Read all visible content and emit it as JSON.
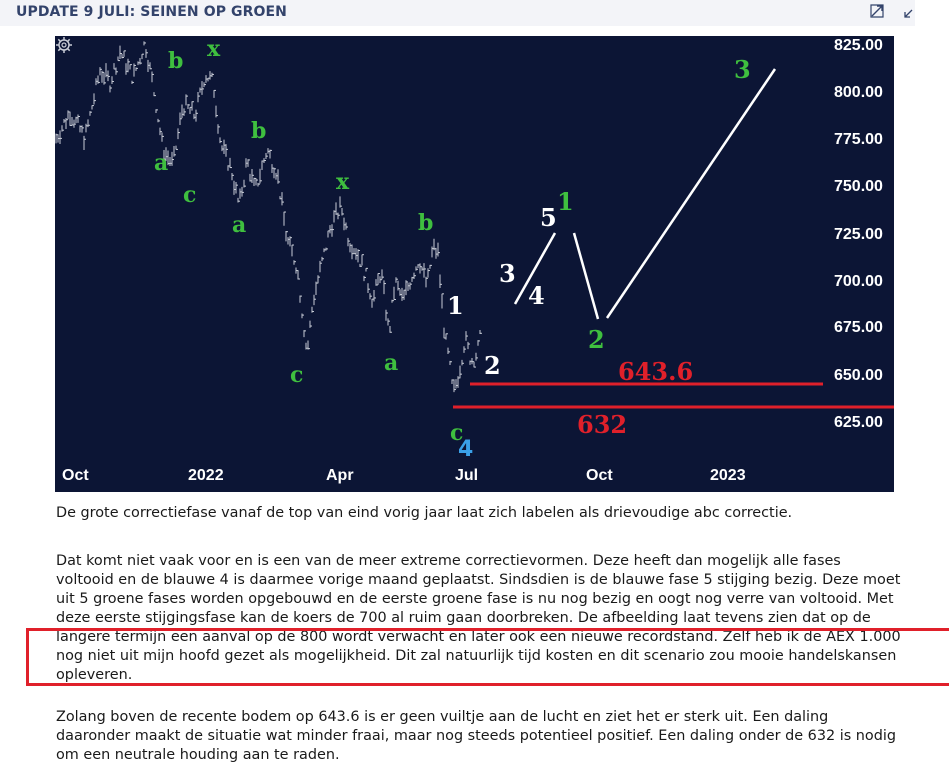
{
  "header": {
    "title": "UPDATE 9 JULI: SEINEN OP GROEN",
    "expand_icon": "expand-arrow-icon",
    "collapse_icon": "collapse-arrow-icon"
  },
  "chart": {
    "y_ticks": [
      "825.00",
      "800.00",
      "775.00",
      "750.00",
      "725.00",
      "700.00",
      "675.00",
      "650.00",
      "625.00"
    ],
    "x_ticks": [
      "Oct",
      "2022",
      "Apr",
      "Jul",
      "Oct",
      "2023"
    ],
    "settings_icon": "gear-icon",
    "colors": {
      "background": "#0c1535",
      "price": "#c8ccd6",
      "green_label": "#3fbf3f",
      "white_label": "#ffffff",
      "blue_label": "#3aa0e8",
      "red_level": "#e0202a"
    },
    "labels": {
      "green": [
        {
          "id": "b1",
          "text": "b"
        },
        {
          "id": "x1",
          "text": "x"
        },
        {
          "id": "a1",
          "text": "a"
        },
        {
          "id": "c1",
          "text": "c"
        },
        {
          "id": "b2",
          "text": "b"
        },
        {
          "id": "a2",
          "text": "a"
        },
        {
          "id": "x2",
          "text": "x"
        },
        {
          "id": "b3",
          "text": "b"
        },
        {
          "id": "c2",
          "text": "c"
        },
        {
          "id": "a3",
          "text": "a"
        },
        {
          "id": "c3",
          "text": "c"
        },
        {
          "id": "w1",
          "text": "1"
        },
        {
          "id": "w2",
          "text": "2"
        },
        {
          "id": "w3",
          "text": "3"
        }
      ],
      "white": [
        {
          "id": "s1",
          "text": "1"
        },
        {
          "id": "s2",
          "text": "2"
        },
        {
          "id": "s3",
          "text": "3"
        },
        {
          "id": "s4",
          "text": "4"
        },
        {
          "id": "s5",
          "text": "5"
        }
      ],
      "blue": [
        {
          "id": "b4",
          "text": "4"
        }
      ]
    },
    "levels": [
      {
        "label": "643.6",
        "value": 643.6
      },
      {
        "label": "632",
        "value": 632
      }
    ]
  },
  "article": {
    "p1": "De grote correctiefase vanaf de top van eind vorig jaar laat zich labelen als drievoudige abc correctie.",
    "p2": "Dat komt niet vaak voor en is een van de meer extreme correctievormen. Deze heeft dan mogelijk alle fases voltooid en de blauwe 4 is daarmee vorige maand geplaatst. Sindsdien is de blauwe fase 5 stijging bezig. Deze moet uit 5 groene fases worden opgebouwd en de eerste groene fase is nu nog bezig en oogt nog verre van voltooid. Met deze eerste stijgingsfase kan de koers de 700 al ruim gaan doorbreken. De afbeelding laat tevens zien dat op de langere termijn een aanval op de 800 wordt verwacht en later ook een nieuwe recordstand. Zelf heb ik de AEX 1.000 nog niet uit mijn hoofd gezet als mogelijkheid. Dit zal natuurlijk tijd kosten en dit scenario zou mooie handelskansen opleveren.",
    "p3": "Zolang boven de recente bodem op 643.6 is er geen vuiltje aan de lucht en ziet het er sterk uit. Een daling daaronder maakt de situatie wat minder fraai, maar nog steeds potentieel positief. Een daling onder de 632 is nodig om een neutrale houding aan te raden."
  }
}
